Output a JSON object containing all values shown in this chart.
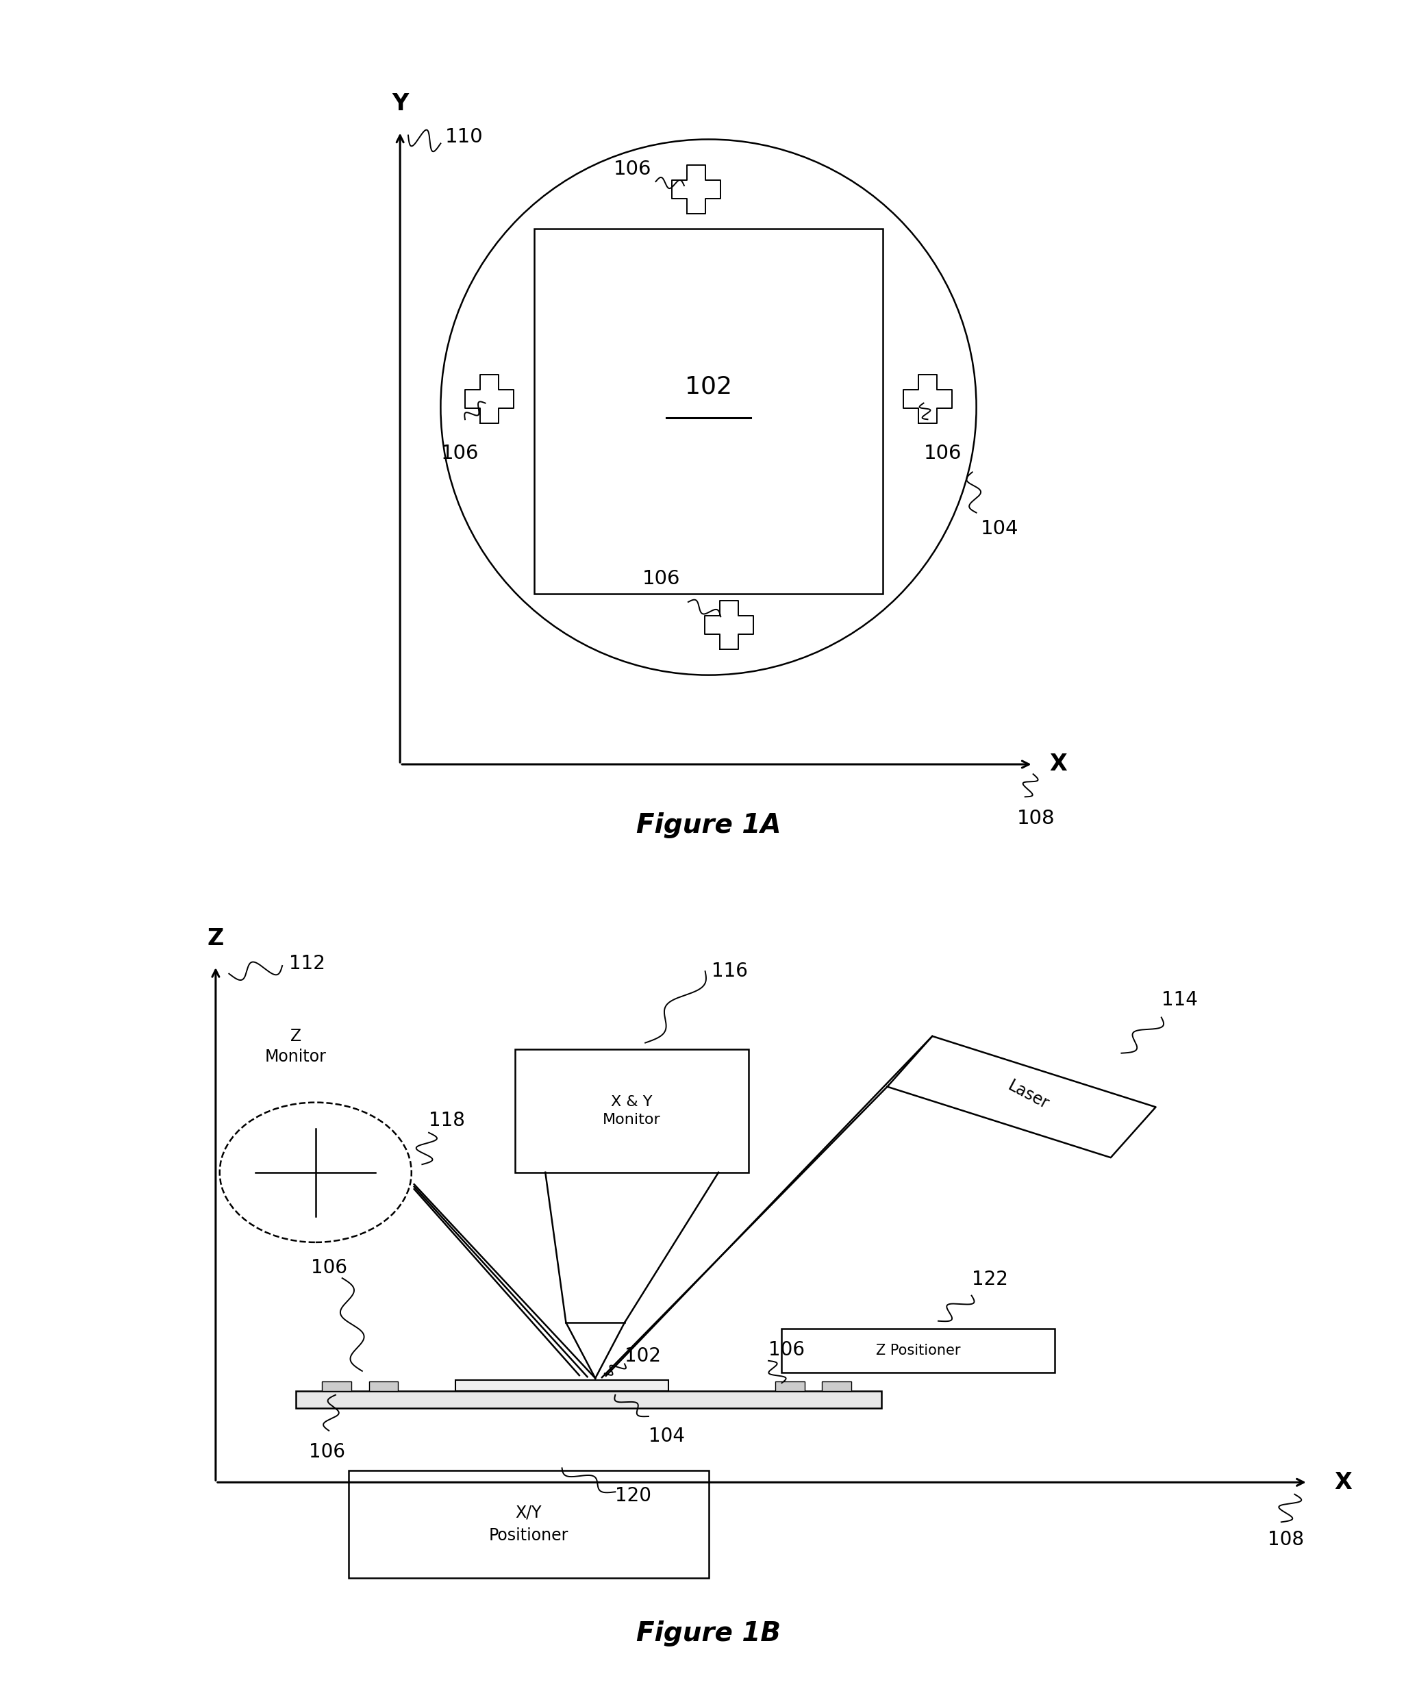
{
  "fig_width": 20.69,
  "fig_height": 24.69,
  "bg_color": "#ffffff",
  "line_color": "#000000",
  "fig1a_title": "Figure 1A",
  "fig1b_title": "Figure 1B",
  "label_102": "102",
  "label_104": "104",
  "label_106": "106",
  "label_108": "108",
  "label_110": "110",
  "label_112": "112",
  "label_114": "114",
  "label_116": "116",
  "label_118": "118",
  "label_120": "120",
  "label_122": "122",
  "label_X": "X",
  "label_Y": "Y",
  "label_Z": "Z",
  "laser_label": "Laser",
  "xy_monitor_label": "X & Y\nMonitor",
  "z_monitor_label": "Z\nMonitor",
  "z_positioner_label": "Z Positioner",
  "xy_positioner_label": "X/Y\nPositioner"
}
